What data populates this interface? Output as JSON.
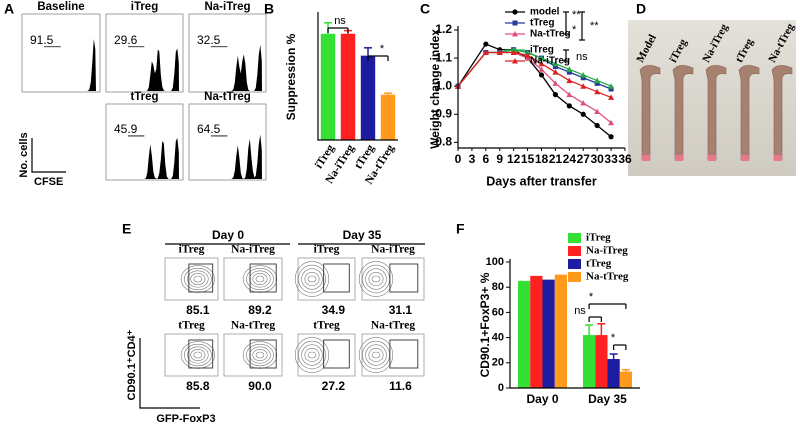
{
  "flow_cfse": {
    "label": "A",
    "y_label": "No. cells",
    "x_label": "CFSE",
    "plots": [
      {
        "title": "Baseline",
        "value": "91.5"
      },
      {
        "title": "iTreg",
        "value": "29.6"
      },
      {
        "title": "Na-iTreg",
        "value": "32.5"
      },
      {
        "title": "tTreg",
        "value": "45.9"
      },
      {
        "title": "Na-tTreg",
        "value": "64.5"
      }
    ]
  },
  "colon_photo": {
    "label": "D",
    "groups": [
      "Model",
      "iTreg",
      "Na-iTreg",
      "tTreg",
      "Na-tTreg"
    ]
  },
  "flow_foxp3": {
    "label": "E",
    "y_label": "CD90.1⁺CD4⁺",
    "x_label": "GFP-FoxP3",
    "days": [
      "Day 0",
      "Day 35"
    ],
    "plots": [
      {
        "title": "iTreg",
        "value": "85.1"
      },
      {
        "title": "Na-iTreg",
        "value": "89.2"
      },
      {
        "title": "iTreg",
        "value": "34.9"
      },
      {
        "title": "Na-iTreg",
        "value": "31.1"
      },
      {
        "title": "tTreg",
        "value": "85.8"
      },
      {
        "title": "Na-tTreg",
        "value": "90.0"
      },
      {
        "title": "tTreg",
        "value": "27.2"
      },
      {
        "title": "Na-tTreg",
        "value": "11.6"
      }
    ]
  },
  "chart_data": [
    {
      "type": "bar",
      "label": "B",
      "y_label": "Suppression %",
      "categories": [
        "iTreg",
        "Na-iTreg",
        "tTreg",
        "Na-tTreg"
      ],
      "values": [
        68,
        68,
        54,
        29
      ],
      "errors": [
        7,
        2,
        5,
        1
      ],
      "colors": [
        "#33e033",
        "#ff2020",
        "#1c1ca0",
        "#ff9a1a"
      ],
      "ylim": [
        0,
        80
      ],
      "annotations": [
        "ns",
        "*"
      ]
    },
    {
      "type": "line",
      "label": "C",
      "y_label": "Weight change index",
      "x_label": "Days after transfer",
      "x": [
        0,
        6,
        9,
        12,
        15,
        18,
        21,
        24,
        27,
        30,
        33
      ],
      "xlim": [
        0,
        36
      ],
      "xticks": [
        0,
        3,
        6,
        9,
        12,
        15,
        18,
        21,
        24,
        27,
        30,
        33,
        36
      ],
      "ylim": [
        0.78,
        1.2
      ],
      "yticks": [
        0.8,
        0.9,
        {
          "value": 1,
          "label": "1.0"
        },
        1.1,
        1.2
      ],
      "series": [
        {
          "name": "model",
          "color": "#000000",
          "marker": "circle",
          "values": [
            1.0,
            1.15,
            1.13,
            1.13,
            1.1,
            1.04,
            0.97,
            0.93,
            0.9,
            0.86,
            0.82
          ]
        },
        {
          "name": "tTreg",
          "color": "#2a3a9a",
          "marker": "square",
          "values": [
            1.0,
            1.12,
            1.12,
            1.13,
            1.12,
            1.1,
            1.07,
            1.05,
            1.03,
            1.01,
            0.99
          ]
        },
        {
          "name": "Na-tTreg",
          "color": "#e0507a",
          "marker": "triangle",
          "values": [
            1.0,
            1.12,
            1.12,
            1.12,
            1.1,
            1.06,
            1.01,
            0.97,
            0.94,
            0.91,
            0.87
          ]
        },
        {
          "name": "iTreg",
          "color": "#22aa44",
          "marker": "triangle",
          "values": [
            1.0,
            1.12,
            1.12,
            1.13,
            1.12,
            1.1,
            1.08,
            1.06,
            1.04,
            1.02,
            1.0
          ]
        },
        {
          "name": "Na-iTreg",
          "color": "#e02020",
          "marker": "triangle",
          "values": [
            1.0,
            1.12,
            1.12,
            1.12,
            1.11,
            1.08,
            1.05,
            1.02,
            1.0,
            0.98,
            0.96
          ]
        }
      ],
      "annotations": [
        "**",
        "*",
        "**",
        "ns"
      ]
    },
    {
      "type": "bar",
      "label": "F",
      "y_label": "CD90.1+FoxP3+ %",
      "categories": [
        "Day 0",
        "Day 35"
      ],
      "ylim": [
        0,
        100
      ],
      "yticks": [
        0,
        20,
        40,
        60,
        80,
        100
      ],
      "series": [
        {
          "name": "iTreg",
          "color": "#33e033",
          "values": [
            85,
            42
          ],
          "errors": [
            0,
            8
          ]
        },
        {
          "name": "Na-iTreg",
          "color": "#ff2020",
          "values": [
            89,
            42
          ],
          "errors": [
            0,
            9
          ]
        },
        {
          "name": "tTreg",
          "color": "#1c1ca0",
          "values": [
            86,
            23
          ],
          "errors": [
            0,
            4
          ]
        },
        {
          "name": "Na-tTreg",
          "color": "#ff9a1a",
          "values": [
            90,
            13
          ],
          "errors": [
            0,
            1.5
          ]
        }
      ],
      "annotations": [
        "*",
        "ns",
        "*"
      ]
    }
  ]
}
